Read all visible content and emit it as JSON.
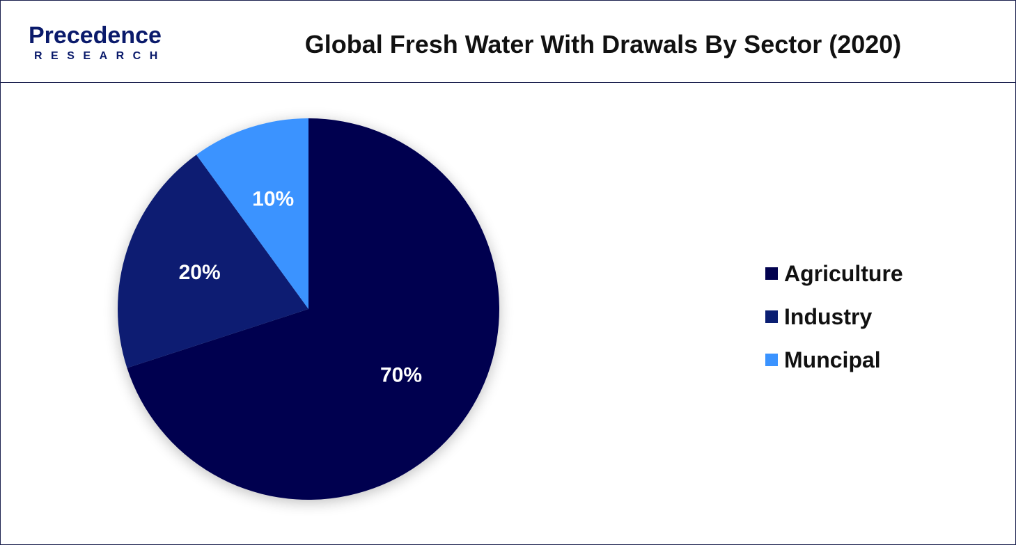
{
  "header": {
    "logo_main": "Precedence",
    "logo_sub": "RESEARCH",
    "title": "Global Fresh Water With Drawals By Sector (2020)"
  },
  "chart_data": {
    "type": "pie",
    "title": "Global Fresh Water With Drawals By Sector (2020)",
    "categories": [
      "Agriculture",
      "Industry",
      "Muncipal"
    ],
    "values": [
      70,
      20,
      10
    ],
    "labels": [
      "70%",
      "20%",
      "10%"
    ],
    "colors": [
      "#02024f",
      "#0a1e72",
      "#3a93ff"
    ],
    "legend_position": "right"
  },
  "legend": {
    "items": [
      {
        "label": "Agriculture",
        "color": "#02024f"
      },
      {
        "label": "Industry",
        "color": "#0a1e72"
      },
      {
        "label": "Muncipal",
        "color": "#3a93ff"
      }
    ]
  }
}
